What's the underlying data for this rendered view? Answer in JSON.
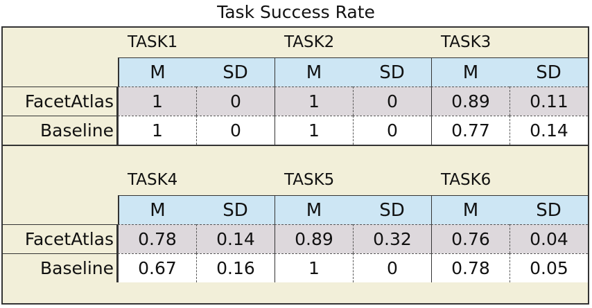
{
  "title": "Task Success Rate",
  "chart_data": {
    "type": "table",
    "title": "Task Success Rate",
    "measures": [
      "M",
      "SD"
    ],
    "groups": [
      {
        "tasks": [
          "TASK1",
          "TASK2",
          "TASK3"
        ],
        "rows": [
          {
            "label": "FacetAtlas",
            "values": [
              "1",
              "0",
              "1",
              "0",
              "0.89",
              "0.11"
            ]
          },
          {
            "label": "Baseline",
            "values": [
              "1",
              "0",
              "1",
              "0",
              "0.77",
              "0.14"
            ]
          }
        ]
      },
      {
        "tasks": [
          "TASK4",
          "TASK5",
          "TASK6"
        ],
        "rows": [
          {
            "label": "FacetAtlas",
            "values": [
              "0.78",
              "0.14",
              "0.89",
              "0.32",
              "0.76",
              "0.04"
            ]
          },
          {
            "label": "Baseline",
            "values": [
              "0.67",
              "0.16",
              "1",
              "0",
              "0.78",
              "0.05"
            ]
          }
        ]
      }
    ]
  }
}
